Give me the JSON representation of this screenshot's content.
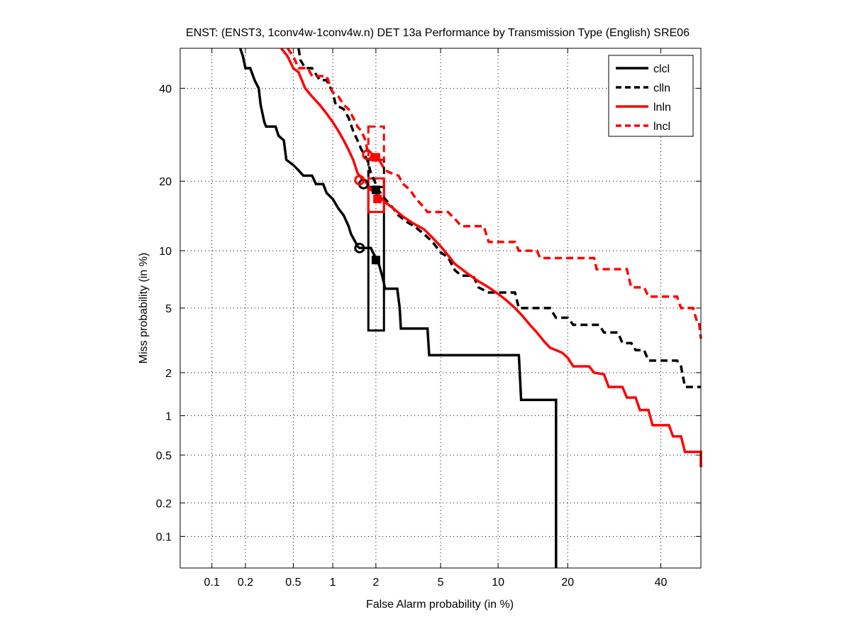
{
  "chart_data": {
    "type": "line",
    "title": "ENST: (ENST3, 1conv4w-1conv4w.n) DET 13a Performance by Transmission Type (English) SRE06",
    "xlabel": "False Alarm probability (in %)",
    "ylabel": "Miss probability (in %)",
    "xscale": "normal-deviate",
    "yscale": "normal-deviate",
    "xlim": [
      0.05,
      50
    ],
    "ylim": [
      0.05,
      50
    ],
    "xticks": [
      0.1,
      0.2,
      0.5,
      1,
      2,
      5,
      10,
      20,
      40
    ],
    "xtick_labels": [
      "0.1",
      "0.2",
      "0.5",
      "1",
      "2",
      "5",
      "10",
      "20",
      "40"
    ],
    "yticks": [
      0.1,
      0.2,
      0.5,
      1,
      2,
      5,
      10,
      20,
      40
    ],
    "ytick_labels": [
      "0.1",
      "0.2",
      "0.5",
      "1",
      "2",
      "5",
      "10",
      "20",
      "40"
    ],
    "grid": true,
    "legend_position": "top-right",
    "series": [
      {
        "name": "clcl",
        "color": "#000000",
        "dash": "solid",
        "points": [
          [
            0.18,
            50
          ],
          [
            0.19,
            48
          ],
          [
            0.2,
            45
          ],
          [
            0.22,
            45
          ],
          [
            0.24,
            42
          ],
          [
            0.26,
            40
          ],
          [
            0.27,
            36
          ],
          [
            0.29,
            32
          ],
          [
            0.3,
            31
          ],
          [
            0.36,
            31
          ],
          [
            0.38,
            29
          ],
          [
            0.42,
            28
          ],
          [
            0.44,
            24
          ],
          [
            0.5,
            23
          ],
          [
            0.55,
            22
          ],
          [
            0.6,
            21
          ],
          [
            0.7,
            21
          ],
          [
            0.75,
            19.5
          ],
          [
            0.85,
            19.5
          ],
          [
            0.9,
            18
          ],
          [
            1.0,
            17
          ],
          [
            1.1,
            15.5
          ],
          [
            1.2,
            14.5
          ],
          [
            1.3,
            13
          ],
          [
            1.35,
            12
          ],
          [
            1.45,
            11
          ],
          [
            1.5,
            10.5
          ],
          [
            1.55,
            10.3
          ],
          [
            1.85,
            10.3
          ],
          [
            1.95,
            9.5
          ],
          [
            2.1,
            8.5
          ],
          [
            2.2,
            7.5
          ],
          [
            2.3,
            6.4
          ],
          [
            2.75,
            6.4
          ],
          [
            2.85,
            5.0
          ],
          [
            2.9,
            3.8
          ],
          [
            4.2,
            3.8
          ],
          [
            4.3,
            2.6
          ],
          [
            12.5,
            2.6
          ],
          [
            12.8,
            1.3
          ],
          [
            18,
            1.3
          ],
          [
            18,
            0.05
          ]
        ],
        "actual_point": [
          1.55,
          10.3
        ],
        "min_point": [
          2.0,
          9.0
        ],
        "conf_box": {
          "fa": [
            1.78,
            2.26
          ],
          "miss": [
            3.7,
            19
          ]
        }
      },
      {
        "name": "clln",
        "color": "#000000",
        "dash": "dashed",
        "points": [
          [
            0.55,
            50
          ],
          [
            0.57,
            47
          ],
          [
            0.62,
            45
          ],
          [
            0.7,
            45
          ],
          [
            0.8,
            42
          ],
          [
            0.9,
            42
          ],
          [
            1.0,
            39
          ],
          [
            1.05,
            36
          ],
          [
            1.2,
            35
          ],
          [
            1.3,
            33
          ],
          [
            1.4,
            30
          ],
          [
            1.5,
            28
          ],
          [
            1.6,
            26
          ],
          [
            1.75,
            24
          ],
          [
            1.85,
            21.5
          ],
          [
            2.0,
            19.5
          ],
          [
            2.1,
            18.3
          ],
          [
            2.3,
            17
          ],
          [
            2.6,
            15.5
          ],
          [
            2.8,
            14.5
          ],
          [
            3.2,
            13.5
          ],
          [
            3.5,
            13
          ],
          [
            4.0,
            12
          ],
          [
            4.5,
            11
          ],
          [
            5.0,
            9.8
          ],
          [
            5.5,
            9.3
          ],
          [
            6.0,
            8
          ],
          [
            6.5,
            7.5
          ],
          [
            7.5,
            7.5
          ],
          [
            8.0,
            6.5
          ],
          [
            9.0,
            6.1
          ],
          [
            12,
            6.1
          ],
          [
            12.5,
            5
          ],
          [
            17,
            5
          ],
          [
            18,
            4.4
          ],
          [
            20,
            4.4
          ],
          [
            21,
            4.0
          ],
          [
            26,
            4.0
          ],
          [
            27,
            3.6
          ],
          [
            30,
            3.6
          ],
          [
            31,
            3.1
          ],
          [
            33,
            3.1
          ],
          [
            34,
            2.8
          ],
          [
            36,
            2.8
          ],
          [
            37,
            2.4
          ],
          [
            44,
            2.4
          ],
          [
            45,
            2.2
          ],
          [
            46,
            1.6
          ],
          [
            50,
            1.6
          ]
        ],
        "actual_point": [
          1.65,
          19.5
        ],
        "min_point": [
          2.0,
          18.5
        ],
        "conf_box": {
          "fa": [
            1.78,
            2.26
          ],
          "miss": [
            19,
            24
          ]
        }
      },
      {
        "name": "lnln",
        "color": "#ff0000",
        "dash": "solid",
        "points": [
          [
            0.4,
            50
          ],
          [
            0.45,
            48
          ],
          [
            0.5,
            45
          ],
          [
            0.55,
            44
          ],
          [
            0.62,
            40
          ],
          [
            0.7,
            38
          ],
          [
            0.8,
            36
          ],
          [
            0.9,
            34
          ],
          [
            1.0,
            32
          ],
          [
            1.1,
            30
          ],
          [
            1.2,
            28
          ],
          [
            1.3,
            26
          ],
          [
            1.4,
            24
          ],
          [
            1.5,
            21.5
          ],
          [
            1.6,
            20.5
          ],
          [
            1.7,
            20
          ],
          [
            1.85,
            18.5
          ],
          [
            2.1,
            17.5
          ],
          [
            2.3,
            16.5
          ],
          [
            2.6,
            15.5
          ],
          [
            3.0,
            14.3
          ],
          [
            3.5,
            13.3
          ],
          [
            4.0,
            12.6
          ],
          [
            4.5,
            11.5
          ],
          [
            5.0,
            10.5
          ],
          [
            5.5,
            9.5
          ],
          [
            6.0,
            8.6
          ],
          [
            7.0,
            7.7
          ],
          [
            8.0,
            7.0
          ],
          [
            9.0,
            6.5
          ],
          [
            10,
            6.0
          ],
          [
            11,
            5.5
          ],
          [
            12,
            5
          ],
          [
            13,
            4.5
          ],
          [
            14,
            4.0
          ],
          [
            15,
            3.6
          ],
          [
            16,
            3.2
          ],
          [
            17,
            2.9
          ],
          [
            19,
            2.7
          ],
          [
            20,
            2.5
          ],
          [
            21,
            2.2
          ],
          [
            24,
            2.2
          ],
          [
            25,
            2.0
          ],
          [
            27,
            1.95
          ],
          [
            28,
            1.6
          ],
          [
            31,
            1.6
          ],
          [
            32,
            1.35
          ],
          [
            34,
            1.35
          ],
          [
            35,
            1.1
          ],
          [
            37,
            1.1
          ],
          [
            38,
            0.85
          ],
          [
            42,
            0.85
          ],
          [
            43,
            0.7
          ],
          [
            45,
            0.7
          ],
          [
            46,
            0.53
          ],
          [
            50,
            0.53
          ],
          [
            50,
            0.4
          ]
        ],
        "actual_point": [
          1.55,
          20.2
        ],
        "min_point": [
          2.05,
          17.0
        ],
        "conf_box": {
          "fa": [
            1.78,
            2.26
          ],
          "miss": [
            15,
            20.5
          ]
        }
      },
      {
        "name": "lncl",
        "color": "#ff0000",
        "dash": "dashed",
        "points": [
          [
            0.45,
            50
          ],
          [
            0.5,
            48
          ],
          [
            0.55,
            45
          ],
          [
            0.65,
            45
          ],
          [
            0.7,
            43
          ],
          [
            0.9,
            43
          ],
          [
            1.0,
            39
          ],
          [
            1.1,
            38
          ],
          [
            1.2,
            36
          ],
          [
            1.3,
            35
          ],
          [
            1.4,
            33
          ],
          [
            1.5,
            31
          ],
          [
            1.6,
            30
          ],
          [
            1.7,
            28
          ],
          [
            1.75,
            26
          ],
          [
            1.85,
            25.5
          ],
          [
            2.1,
            24
          ],
          [
            2.3,
            22
          ],
          [
            2.5,
            21.5
          ],
          [
            2.8,
            21
          ],
          [
            3.0,
            19.5
          ],
          [
            3.3,
            18.5
          ],
          [
            3.6,
            17
          ],
          [
            3.9,
            16
          ],
          [
            4.2,
            15
          ],
          [
            5.5,
            15
          ],
          [
            6.0,
            14
          ],
          [
            6.5,
            13
          ],
          [
            8.5,
            13
          ],
          [
            9.0,
            11
          ],
          [
            12,
            11
          ],
          [
            12.5,
            10
          ],
          [
            15,
            10
          ],
          [
            15.5,
            9.2
          ],
          [
            25,
            9.2
          ],
          [
            25.5,
            8.1
          ],
          [
            32,
            8.1
          ],
          [
            32.5,
            7.2
          ],
          [
            33,
            6.5
          ],
          [
            36,
            6.5
          ],
          [
            37,
            5.8
          ],
          [
            44,
            5.8
          ],
          [
            45,
            5.0
          ],
          [
            48,
            5.0
          ],
          [
            49,
            4.2
          ],
          [
            49.5,
            4.2
          ],
          [
            50,
            3.3
          ]
        ],
        "actual_point": [
          1.75,
          25
        ],
        "min_point": [
          2.0,
          24.5
        ],
        "conf_box": {
          "fa": [
            1.78,
            2.26
          ],
          "miss": [
            24,
            31
          ]
        }
      }
    ]
  }
}
